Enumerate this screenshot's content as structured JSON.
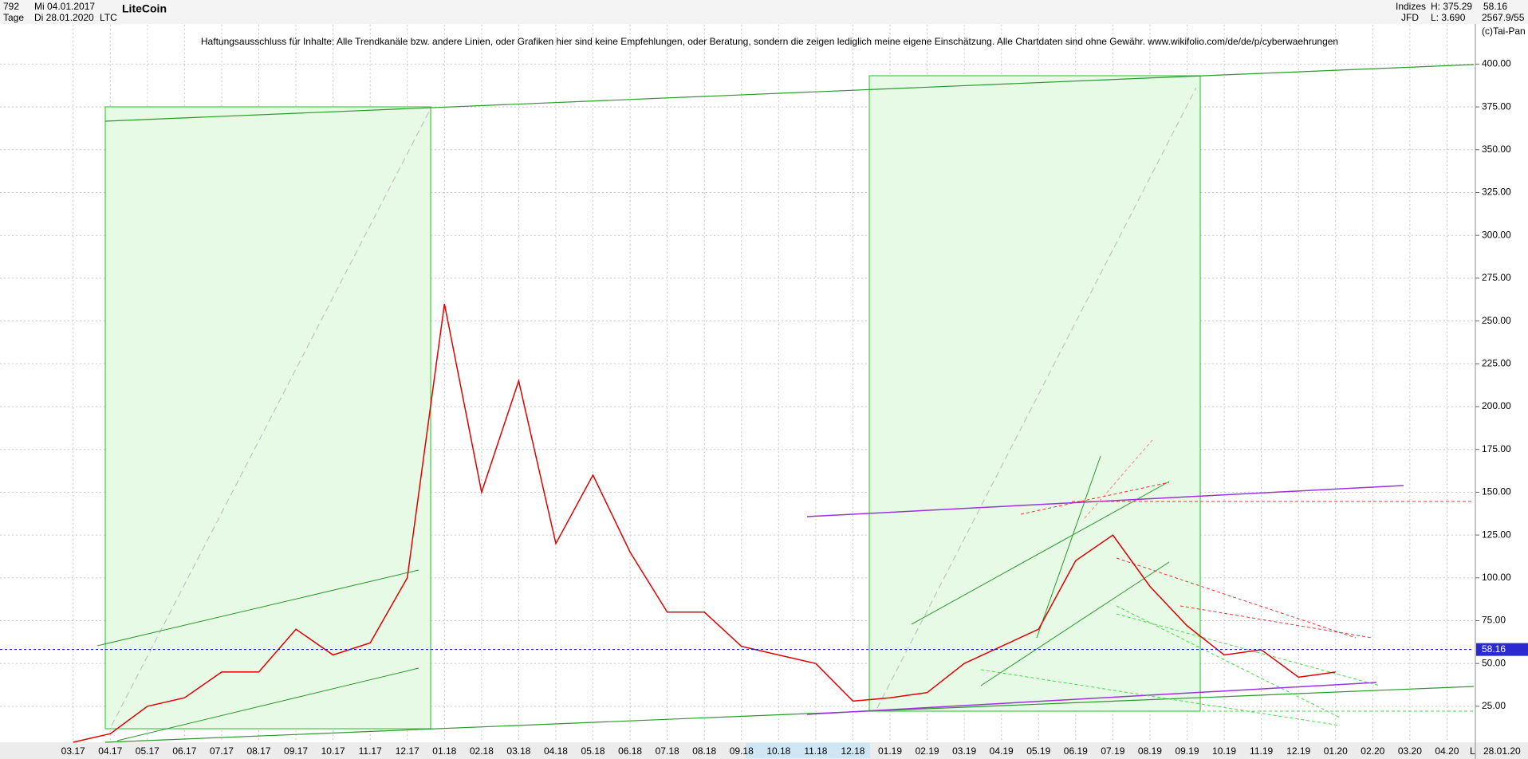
{
  "chart_data": {
    "type": "line",
    "annotations": [
      "792",
      "Mi 04.01.2017",
      "Tage",
      "Di 28.01.2020",
      "LiteCoin",
      "LTC",
      "Indizes",
      "JFD",
      "H: 375.29",
      "L: 3.690",
      "58.16",
      "2567.9/55",
      "(c)Tai-Pan",
      "Haftungsausschluss für Inhalte: Alle Trendkanäle bzw. andere Linien, oder Grafiken hier sind keine Empfehlungen, oder Beratung, sondern die zeigen lediglich meine eigene Einschätzung. Alle Chartdaten sind ohne Gewähr.  www.wikifolio.com/de/de/p/cyberwaehrungen",
      "28.01.20",
      "L"
    ],
    "categories": [
      "03.17",
      "04.17",
      "05.17",
      "06.17",
      "07.17",
      "08.17",
      "09.17",
      "10.17",
      "11.17",
      "12.17",
      "01.18",
      "02.18",
      "03.18",
      "04.18",
      "05.18",
      "06.18",
      "07.18",
      "08.18",
      "09.18",
      "10.18",
      "11.18",
      "12.18",
      "01.19",
      "02.19",
      "03.19",
      "04.19",
      "05.19",
      "06.19",
      "07.19",
      "08.19",
      "09.19",
      "10.19",
      "11.19",
      "12.19",
      "01.20",
      "02.20",
      "03.20",
      "04.20"
    ],
    "series": [
      {
        "name": "LTC",
        "color": "#e00000",
        "values": [
          4,
          9,
          25,
          30,
          45,
          45,
          70,
          55,
          62,
          100,
          260,
          150,
          215,
          120,
          160,
          115,
          80,
          80,
          60,
          55,
          50,
          28,
          30,
          33,
          50,
          60,
          70,
          110,
          125,
          95,
          72,
          55,
          58,
          42,
          45,
          null,
          null,
          null
        ]
      }
    ],
    "hline": 58.16,
    "ylim": [
      4,
      423
    ],
    "yticks": [
      {
        "value": 25,
        "label": "25.00"
      },
      {
        "value": 50,
        "label": "50.00"
      },
      {
        "value": 75,
        "label": "75.00"
      },
      {
        "value": 100,
        "label": "100.00"
      },
      {
        "value": 125,
        "label": "125.00"
      },
      {
        "value": 150,
        "label": "150.00"
      },
      {
        "value": 175,
        "label": "175.00"
      },
      {
        "value": 200,
        "label": "200.00"
      },
      {
        "value": 225,
        "label": "225.00"
      },
      {
        "value": 250,
        "label": "250.00"
      },
      {
        "value": 275,
        "label": "275.00"
      },
      {
        "value": 300,
        "label": "300.00"
      },
      {
        "value": 325,
        "label": "325.00"
      },
      {
        "value": 350,
        "label": "350.00"
      },
      {
        "value": 375,
        "label": "375.00"
      },
      {
        "value": 400,
        "label": "400.00"
      }
    ],
    "grid": true
  }
}
